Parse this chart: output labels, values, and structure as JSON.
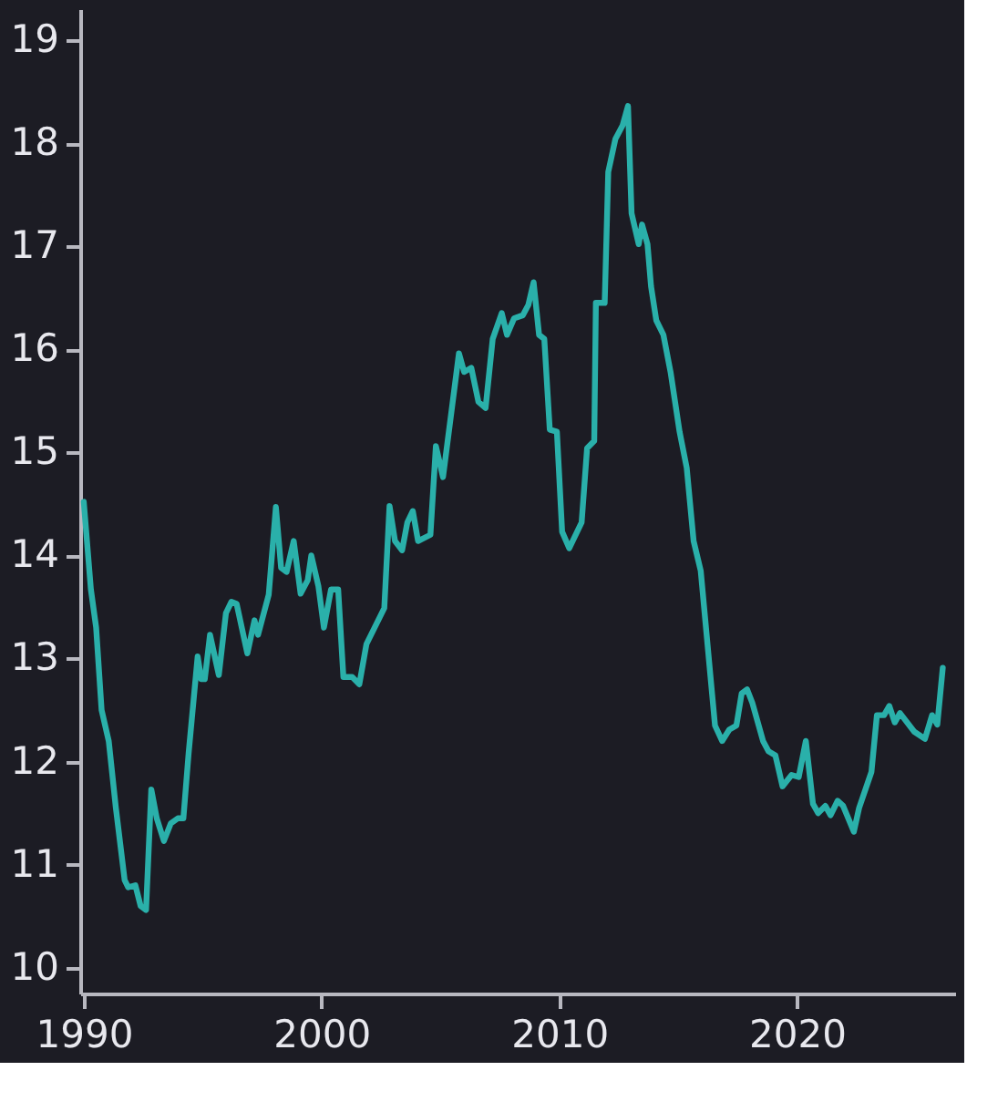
{
  "chart_data": {
    "type": "line",
    "xlim": [
      1989.85,
      2026.65
    ],
    "ylim": [
      9.75,
      19.3
    ],
    "xticks": [
      1990,
      2000,
      2010,
      2020
    ],
    "yticks": [
      10,
      11,
      12,
      13,
      14,
      15,
      16,
      17,
      18,
      19
    ],
    "grid": false,
    "legend": false,
    "marker": "none",
    "line_style": "solid",
    "series": [
      {
        "color": "#2ab0aa",
        "x": [
          1990.0,
          1990.3,
          1990.52,
          1990.75,
          1991.05,
          1991.35,
          1991.72,
          1991.87,
          1992.17,
          1992.39,
          1992.62,
          1992.84,
          1993.07,
          1993.37,
          1993.66,
          1993.96,
          1994.19,
          1994.41,
          1994.79,
          1994.94,
          1995.09,
          1995.31,
          1995.68,
          1995.98,
          1996.21,
          1996.43,
          1996.88,
          1997.18,
          1997.33,
          1997.78,
          1998.08,
          1998.3,
          1998.53,
          1998.83,
          1999.12,
          1999.42,
          1999.57,
          1999.87,
          2000.1,
          2000.4,
          2000.7,
          2000.92,
          2001.29,
          2001.59,
          2001.89,
          2002.64,
          2002.86,
          2003.09,
          2003.39,
          2003.61,
          2003.84,
          2004.06,
          2004.58,
          2004.81,
          2005.11,
          2005.78,
          2006.0,
          2006.3,
          2006.6,
          2006.9,
          2007.2,
          2007.58,
          2007.8,
          2008.1,
          2008.47,
          2008.7,
          2008.92,
          2009.15,
          2009.37,
          2009.6,
          2009.9,
          2010.12,
          2010.42,
          2010.94,
          2011.17,
          2011.47,
          2011.54,
          2011.91,
          2012.06,
          2012.36,
          2012.66,
          2012.89,
          2013.04,
          2013.34,
          2013.48,
          2013.71,
          2013.86,
          2014.08,
          2014.38,
          2014.68,
          2015.06,
          2015.36,
          2015.65,
          2015.95,
          2016.55,
          2016.85,
          2017.15,
          2017.45,
          2017.67,
          2017.9,
          2018.12,
          2018.57,
          2018.8,
          2019.09,
          2019.39,
          2019.77,
          2020.07,
          2020.37,
          2020.67,
          2020.89,
          2021.19,
          2021.41,
          2021.71,
          2021.94,
          2022.39,
          2022.61,
          2023.13,
          2023.36,
          2023.66,
          2023.88,
          2024.11,
          2024.33,
          2024.93,
          2025.38,
          2025.68,
          2025.9,
          2026.13
        ],
        "values": [
          14.52,
          13.67,
          13.3,
          12.5,
          12.2,
          11.55,
          10.85,
          10.78,
          10.8,
          10.6,
          10.56,
          11.73,
          11.45,
          11.23,
          11.4,
          11.45,
          11.45,
          12.08,
          13.02,
          12.8,
          12.8,
          13.23,
          12.84,
          13.44,
          13.55,
          13.53,
          13.05,
          13.37,
          13.23,
          13.62,
          14.47,
          13.88,
          13.84,
          14.14,
          13.63,
          13.76,
          14.0,
          13.7,
          13.3,
          13.67,
          13.67,
          12.82,
          12.82,
          12.75,
          13.14,
          13.49,
          14.48,
          14.14,
          14.05,
          14.32,
          14.43,
          14.14,
          14.2,
          15.06,
          14.76,
          15.96,
          15.78,
          15.82,
          15.49,
          15.43,
          16.1,
          16.35,
          16.14,
          16.3,
          16.33,
          16.43,
          16.65,
          16.14,
          16.1,
          15.22,
          15.2,
          14.23,
          14.07,
          14.32,
          15.04,
          15.11,
          16.45,
          16.45,
          17.72,
          18.04,
          18.17,
          18.36,
          17.32,
          17.02,
          17.21,
          17.02,
          16.61,
          16.28,
          16.14,
          15.78,
          15.2,
          14.85,
          14.14,
          13.85,
          12.35,
          12.2,
          12.31,
          12.35,
          12.66,
          12.7,
          12.57,
          12.2,
          12.1,
          12.06,
          11.76,
          11.87,
          11.85,
          12.2,
          11.59,
          11.5,
          11.57,
          11.48,
          11.62,
          11.57,
          11.32,
          11.55,
          11.9,
          12.45,
          12.45,
          12.54,
          12.38,
          12.47,
          12.29,
          12.22,
          12.45,
          12.36,
          12.91
        ]
      }
    ]
  }
}
